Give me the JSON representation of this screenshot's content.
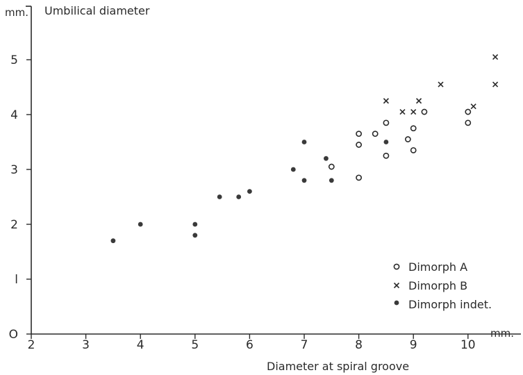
{
  "chart_data": {
    "type": "scatter",
    "title": "",
    "xlabel": "Diameter at spiral groove",
    "ylabel": "Umbilical diameter",
    "x_unit": "mm.",
    "y_unit": "mm.",
    "xlim": [
      2,
      10.9
    ],
    "ylim": [
      0,
      5.5
    ],
    "x_ticks": [
      2,
      3,
      4,
      5,
      6,
      7,
      8,
      9,
      10
    ],
    "y_ticks": [
      0,
      1,
      2,
      3,
      4,
      5
    ],
    "x_tick_labels": [
      "2",
      "3",
      "4",
      "5",
      "6",
      "7",
      "8",
      "9",
      "10"
    ],
    "y_tick_labels": [
      "O",
      "l",
      "2",
      "3",
      "4",
      "5"
    ],
    "grid": false,
    "legend_position": "bottom-right",
    "series": [
      {
        "name": "Dimorph A",
        "marker": "open-circle",
        "points": [
          {
            "x": 7.5,
            "y": 3.05
          },
          {
            "x": 8.0,
            "y": 2.85
          },
          {
            "x": 8.0,
            "y": 3.45
          },
          {
            "x": 8.0,
            "y": 3.65
          },
          {
            "x": 8.3,
            "y": 3.65
          },
          {
            "x": 8.5,
            "y": 3.25
          },
          {
            "x": 8.5,
            "y": 3.85
          },
          {
            "x": 8.9,
            "y": 3.55
          },
          {
            "x": 9.0,
            "y": 3.35
          },
          {
            "x": 9.0,
            "y": 3.75
          },
          {
            "x": 9.2,
            "y": 4.05
          },
          {
            "x": 10.0,
            "y": 3.85
          },
          {
            "x": 10.0,
            "y": 4.05
          }
        ]
      },
      {
        "name": "Dimorph B",
        "marker": "cross",
        "points": [
          {
            "x": 8.5,
            "y": 4.25
          },
          {
            "x": 8.8,
            "y": 4.05
          },
          {
            "x": 9.0,
            "y": 4.05
          },
          {
            "x": 9.1,
            "y": 4.25
          },
          {
            "x": 9.5,
            "y": 4.55
          },
          {
            "x": 10.1,
            "y": 4.15
          },
          {
            "x": 10.5,
            "y": 4.55
          },
          {
            "x": 10.5,
            "y": 5.05
          }
        ]
      },
      {
        "name": "Dimorph indet.",
        "marker": "filled-dot",
        "points": [
          {
            "x": 3.5,
            "y": 1.7
          },
          {
            "x": 4.0,
            "y": 2.0
          },
          {
            "x": 5.0,
            "y": 1.8
          },
          {
            "x": 5.0,
            "y": 2.0
          },
          {
            "x": 5.45,
            "y": 2.5
          },
          {
            "x": 5.8,
            "y": 2.5
          },
          {
            "x": 6.0,
            "y": 2.6
          },
          {
            "x": 6.8,
            "y": 3.0
          },
          {
            "x": 7.0,
            "y": 2.8
          },
          {
            "x": 7.0,
            "y": 3.5
          },
          {
            "x": 7.4,
            "y": 3.2
          },
          {
            "x": 7.5,
            "y": 2.8
          },
          {
            "x": 8.5,
            "y": 3.5
          }
        ]
      }
    ]
  }
}
